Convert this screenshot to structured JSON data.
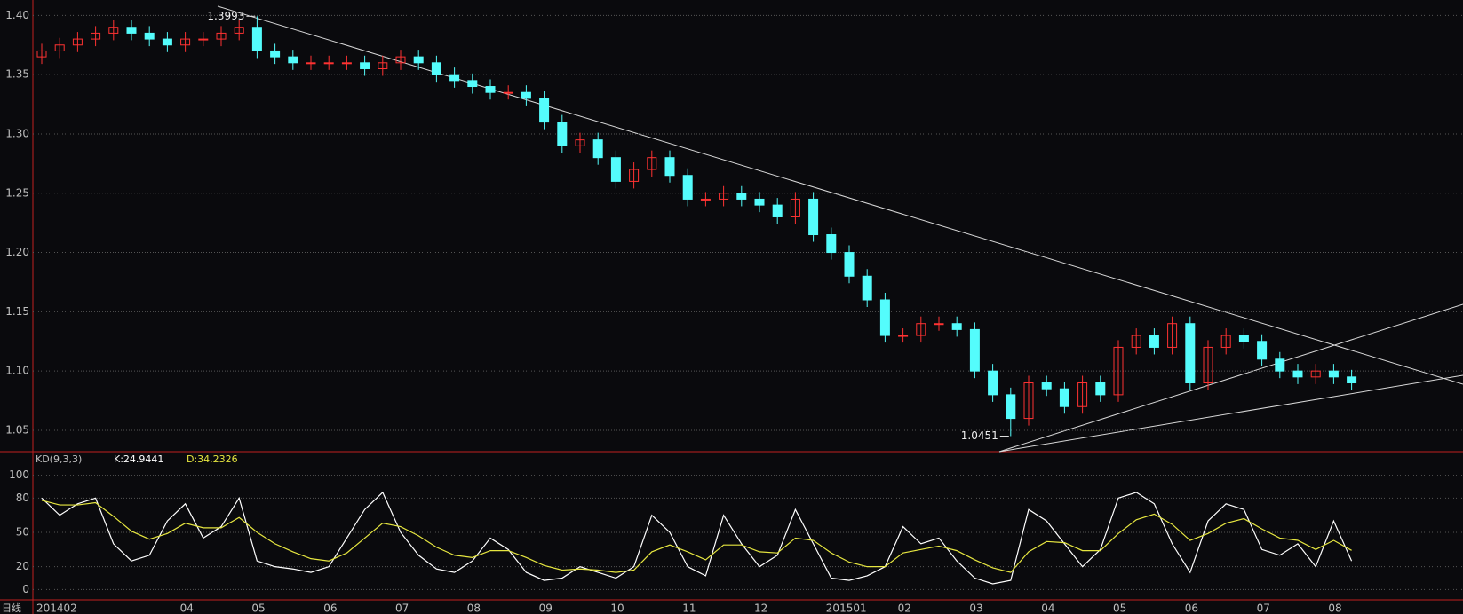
{
  "chart_data": [
    {
      "type": "candlestick",
      "categories": [
        "201402",
        null,
        null,
        null,
        null,
        null,
        null,
        null,
        "04",
        null,
        null,
        null,
        "05",
        null,
        null,
        null,
        "06",
        null,
        null,
        null,
        "07",
        null,
        null,
        null,
        "08",
        null,
        null,
        null,
        "09",
        null,
        null,
        null,
        "10",
        null,
        null,
        null,
        "11",
        null,
        null,
        null,
        "12",
        null,
        null,
        null,
        "201501",
        null,
        null,
        null,
        "02",
        null,
        null,
        null,
        "03",
        null,
        null,
        null,
        "04",
        null,
        null,
        null,
        "05",
        null,
        null,
        null,
        "06",
        null,
        null,
        null,
        "07",
        null,
        null,
        null,
        "08",
        null
      ],
      "open": [
        1.365,
        1.37,
        1.375,
        1.38,
        1.385,
        1.39,
        1.385,
        1.38,
        1.375,
        1.38,
        1.38,
        1.385,
        1.39,
        1.37,
        1.365,
        1.36,
        1.36,
        1.36,
        1.36,
        1.355,
        1.36,
        1.365,
        1.36,
        1.35,
        1.345,
        1.34,
        1.335,
        1.335,
        1.33,
        1.31,
        1.29,
        1.295,
        1.28,
        1.26,
        1.27,
        1.28,
        1.265,
        1.245,
        1.245,
        1.25,
        1.245,
        1.24,
        1.23,
        1.245,
        1.215,
        1.2,
        1.18,
        1.16,
        1.13,
        1.13,
        1.14,
        1.14,
        1.135,
        1.1,
        1.08,
        1.06,
        1.09,
        1.085,
        1.07,
        1.09,
        1.08,
        1.12,
        1.13,
        1.12,
        1.14,
        1.09,
        1.12,
        1.13,
        1.125,
        1.11,
        1.1,
        1.095,
        1.1,
        1.095
      ],
      "high": [
        1.376,
        1.381,
        1.386,
        1.391,
        1.396,
        1.396,
        1.391,
        1.386,
        1.386,
        1.386,
        1.391,
        1.396,
        1.3993,
        1.376,
        1.371,
        1.366,
        1.366,
        1.366,
        1.366,
        1.366,
        1.371,
        1.371,
        1.366,
        1.356,
        1.351,
        1.346,
        1.341,
        1.341,
        1.336,
        1.316,
        1.301,
        1.301,
        1.286,
        1.276,
        1.286,
        1.286,
        1.271,
        1.251,
        1.256,
        1.256,
        1.251,
        1.246,
        1.251,
        1.251,
        1.221,
        1.206,
        1.186,
        1.166,
        1.136,
        1.146,
        1.146,
        1.146,
        1.141,
        1.106,
        1.086,
        1.096,
        1.096,
        1.091,
        1.096,
        1.096,
        1.126,
        1.136,
        1.136,
        1.146,
        1.146,
        1.126,
        1.136,
        1.136,
        1.131,
        1.116,
        1.106,
        1.106,
        1.106,
        1.101
      ],
      "low": [
        1.359,
        1.364,
        1.369,
        1.374,
        1.379,
        1.379,
        1.374,
        1.369,
        1.369,
        1.374,
        1.374,
        1.379,
        1.364,
        1.359,
        1.354,
        1.354,
        1.354,
        1.354,
        1.349,
        1.349,
        1.354,
        1.354,
        1.344,
        1.339,
        1.334,
        1.329,
        1.329,
        1.324,
        1.304,
        1.284,
        1.284,
        1.274,
        1.254,
        1.254,
        1.264,
        1.259,
        1.239,
        1.239,
        1.239,
        1.239,
        1.234,
        1.224,
        1.224,
        1.209,
        1.194,
        1.174,
        1.154,
        1.124,
        1.124,
        1.124,
        1.134,
        1.129,
        1.094,
        1.074,
        1.0451,
        1.054,
        1.079,
        1.064,
        1.064,
        1.074,
        1.074,
        1.114,
        1.114,
        1.114,
        1.084,
        1.084,
        1.114,
        1.119,
        1.104,
        1.094,
        1.089,
        1.089,
        1.089,
        1.084
      ],
      "close": [
        1.37,
        1.375,
        1.38,
        1.385,
        1.39,
        1.385,
        1.38,
        1.375,
        1.38,
        1.38,
        1.385,
        1.39,
        1.37,
        1.365,
        1.36,
        1.36,
        1.36,
        1.36,
        1.355,
        1.36,
        1.365,
        1.36,
        1.35,
        1.345,
        1.34,
        1.335,
        1.335,
        1.33,
        1.31,
        1.29,
        1.295,
        1.28,
        1.26,
        1.27,
        1.28,
        1.265,
        1.245,
        1.245,
        1.25,
        1.245,
        1.24,
        1.23,
        1.245,
        1.215,
        1.2,
        1.18,
        1.16,
        1.13,
        1.13,
        1.14,
        1.14,
        1.135,
        1.1,
        1.08,
        1.06,
        1.09,
        1.085,
        1.07,
        1.09,
        1.08,
        1.12,
        1.13,
        1.12,
        1.14,
        1.09,
        1.12,
        1.13,
        1.125,
        1.11,
        1.1,
        1.095,
        1.1,
        1.095,
        1.09
      ],
      "up_color": "#ff3232",
      "down_color": "#54fcfc",
      "annotations": [
        {
          "label": "1.3993",
          "value": 1.3993
        },
        {
          "label": "1.0451",
          "value": 1.0451
        }
      ],
      "ylim": [
        1.032,
        1.413
      ],
      "yticks": [
        1.05,
        {
          "value": 1.1,
          "label": "1.10"
        },
        1.15,
        {
          "value": 1.2,
          "label": "1.20"
        },
        1.25,
        {
          "value": 1.3,
          "label": "1.30"
        },
        1.35,
        {
          "value": 1.4,
          "label": "1.40"
        }
      ],
      "grid": true,
      "period_label": "日线"
    },
    {
      "type": "line",
      "title": "KD(9,3,3)",
      "series": [
        {
          "name": "K",
          "color": "#ffffff",
          "value_label": "K:24.9441",
          "values": [
            80,
            65,
            75,
            80,
            40,
            25,
            30,
            60,
            75,
            45,
            55,
            80,
            25,
            20,
            18,
            15,
            20,
            45,
            70,
            85,
            50,
            30,
            18,
            15,
            25,
            45,
            35,
            15,
            8,
            10,
            20,
            15,
            10,
            20,
            65,
            50,
            20,
            12,
            65,
            40,
            20,
            30,
            70,
            40,
            10,
            8,
            12,
            20,
            55,
            40,
            45,
            25,
            10,
            5,
            8,
            70,
            60,
            40,
            20,
            35,
            80,
            85,
            75,
            40,
            15,
            60,
            75,
            70,
            35,
            30,
            40,
            20,
            60,
            24.9441
          ]
        },
        {
          "name": "D",
          "color": "#e6e640",
          "value_label": "D:34.2326",
          "values": [
            78,
            74,
            74,
            76,
            64,
            51,
            44,
            49,
            58,
            54,
            54,
            63,
            50,
            40,
            33,
            27,
            25,
            32,
            45,
            58,
            55,
            47,
            37,
            30,
            28,
            34,
            34,
            28,
            21,
            17,
            18,
            17,
            15,
            17,
            33,
            39,
            33,
            26,
            39,
            39,
            33,
            32,
            45,
            43,
            32,
            24,
            20,
            20,
            32,
            35,
            38,
            34,
            26,
            19,
            15,
            33,
            42,
            41,
            34,
            34,
            49,
            61,
            66,
            57,
            43,
            49,
            58,
            62,
            53,
            45,
            43,
            35,
            43,
            34.2326
          ]
        }
      ],
      "ylim": [
        -9,
        109
      ],
      "yticks": [
        0,
        20,
        50,
        80,
        100
      ],
      "grid": true
    }
  ]
}
